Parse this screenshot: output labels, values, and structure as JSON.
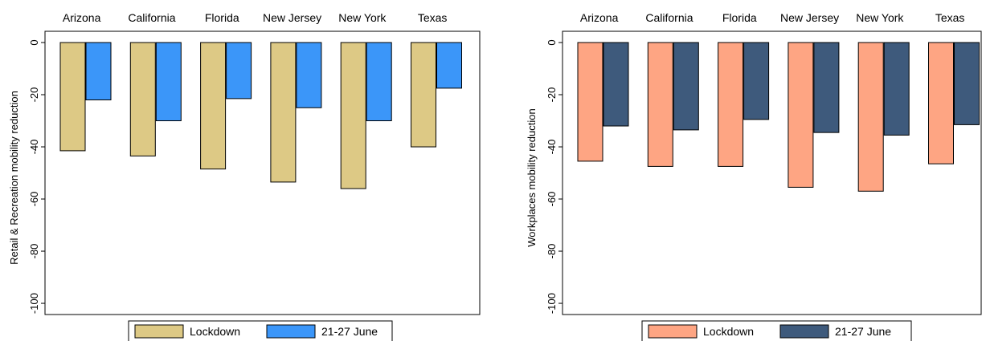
{
  "chart_data": [
    {
      "type": "bar",
      "title": "",
      "xlabel": "",
      "ylabel": "Retail & Recreation mobility reduction",
      "categories": [
        "Arizona",
        "California",
        "Florida",
        "New Jersey",
        "New York",
        "Texas"
      ],
      "yticks": [
        "0",
        "-20",
        "-40",
        "-60",
        "-80",
        "-100"
      ],
      "ylim": [
        -100,
        0
      ],
      "grid": false,
      "legend_position": "bottom",
      "series": [
        {
          "name": "Lockdown",
          "color": "#ddc985",
          "values": [
            -41.5,
            -43.5,
            -48.5,
            -53.5,
            -56,
            -40
          ]
        },
        {
          "name": "21-27 June",
          "color": "#3b96f9",
          "values": [
            -22,
            -30,
            -21.5,
            -25,
            -30,
            -17.5
          ]
        }
      ]
    },
    {
      "type": "bar",
      "title": "",
      "xlabel": "",
      "ylabel": "Workplaces mobility reduction",
      "categories": [
        "Arizona",
        "California",
        "Florida",
        "New Jersey",
        "New York",
        "Texas"
      ],
      "yticks": [
        "0",
        "-20",
        "-40",
        "-60",
        "-80",
        "-100"
      ],
      "ylim": [
        -100,
        0
      ],
      "grid": false,
      "legend_position": "bottom",
      "series": [
        {
          "name": "Lockdown",
          "color": "#fea583",
          "values": [
            -45.5,
            -47.5,
            -47.5,
            -55.5,
            -57,
            -46.5
          ]
        },
        {
          "name": "21-27 June",
          "color": "#3e5a7c",
          "values": [
            -32,
            -33.5,
            -29.5,
            -34.5,
            -35.5,
            -31.5
          ]
        }
      ]
    }
  ]
}
